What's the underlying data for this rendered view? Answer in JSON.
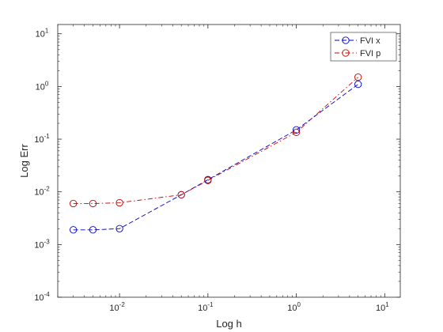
{
  "chart_data": {
    "type": "line",
    "title": "",
    "xlabel": "Log h",
    "ylabel": "Log Err",
    "xscale": "log",
    "yscale": "log",
    "xlim": [
      0.002,
      15
    ],
    "ylim": [
      0.0001,
      15
    ],
    "grid": false,
    "legend_position": "top-right",
    "x_ticks": [
      {
        "value": 0.01,
        "base": "10",
        "exp": "-2"
      },
      {
        "value": 0.1,
        "base": "10",
        "exp": "-1"
      },
      {
        "value": 1,
        "base": "10",
        "exp": "0"
      },
      {
        "value": 10,
        "base": "10",
        "exp": "1"
      }
    ],
    "y_ticks": [
      {
        "value": 0.0001,
        "base": "10",
        "exp": "-4"
      },
      {
        "value": 0.001,
        "base": "10",
        "exp": "-3"
      },
      {
        "value": 0.01,
        "base": "10",
        "exp": "-2"
      },
      {
        "value": 0.1,
        "base": "10",
        "exp": "-1"
      },
      {
        "value": 1,
        "base": "10",
        "exp": "0"
      },
      {
        "value": 10,
        "base": "10",
        "exp": "1"
      }
    ],
    "x": [
      0.003,
      0.005,
      0.01,
      0.05,
      0.1,
      1,
      5
    ],
    "series": [
      {
        "name": "FVI x",
        "color": "#0000c8",
        "dash": "dash",
        "values": [
          0.0019,
          0.0019,
          0.002,
          0.0088,
          0.017,
          0.15,
          1.1
        ]
      },
      {
        "name": "FVI p",
        "color": "#c80000",
        "dash": "dashdot",
        "values": [
          0.006,
          0.006,
          0.0062,
          0.0088,
          0.0165,
          0.135,
          1.5
        ]
      }
    ]
  }
}
